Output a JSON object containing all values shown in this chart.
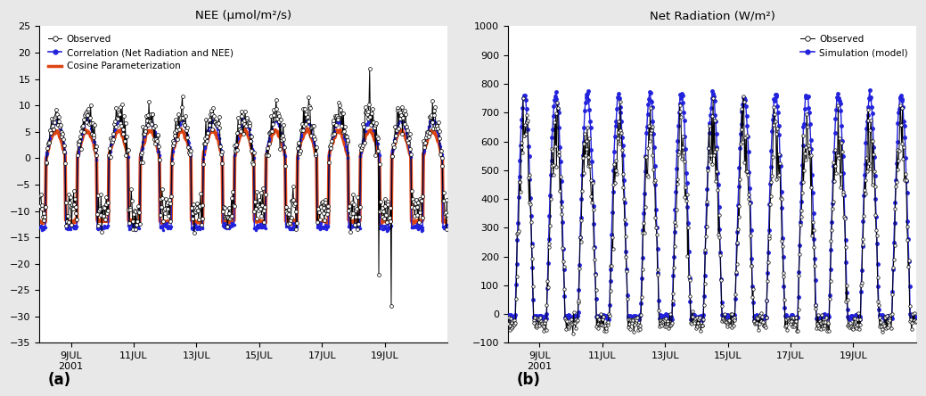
{
  "panel_a": {
    "title": "NEE (μmol/m²/s)",
    "ylim": [
      -35,
      25
    ],
    "yticks": [
      -35,
      -30,
      -25,
      -20,
      -15,
      -10,
      -5,
      0,
      5,
      10,
      15,
      20,
      25
    ],
    "legend": [
      "Observed",
      "Correlation (Net Radiation and NEE)",
      "Cosine Parameterization"
    ],
    "obs_color": "black",
    "corr_color": "#2222dd",
    "cosine_color": "#dd4411"
  },
  "panel_b": {
    "title": "Net Radiation (W/m²)",
    "ylim": [
      -100,
      1000
    ],
    "yticks": [
      -100,
      0,
      100,
      200,
      300,
      400,
      500,
      600,
      700,
      800,
      900,
      1000
    ],
    "legend": [
      "Observed",
      "Simulation (model)"
    ],
    "obs_color": "black",
    "sim_color": "#2222dd"
  },
  "n_days": 13,
  "points_per_day": 48,
  "tick_positions": [
    1,
    3,
    5,
    7,
    9,
    11
  ],
  "tick_labels": [
    "9JUL\n2001",
    "11JUL",
    "13JUL",
    "15JUL",
    "17JUL",
    "19JUL"
  ],
  "fig_bg_color": "#e8e8e8"
}
